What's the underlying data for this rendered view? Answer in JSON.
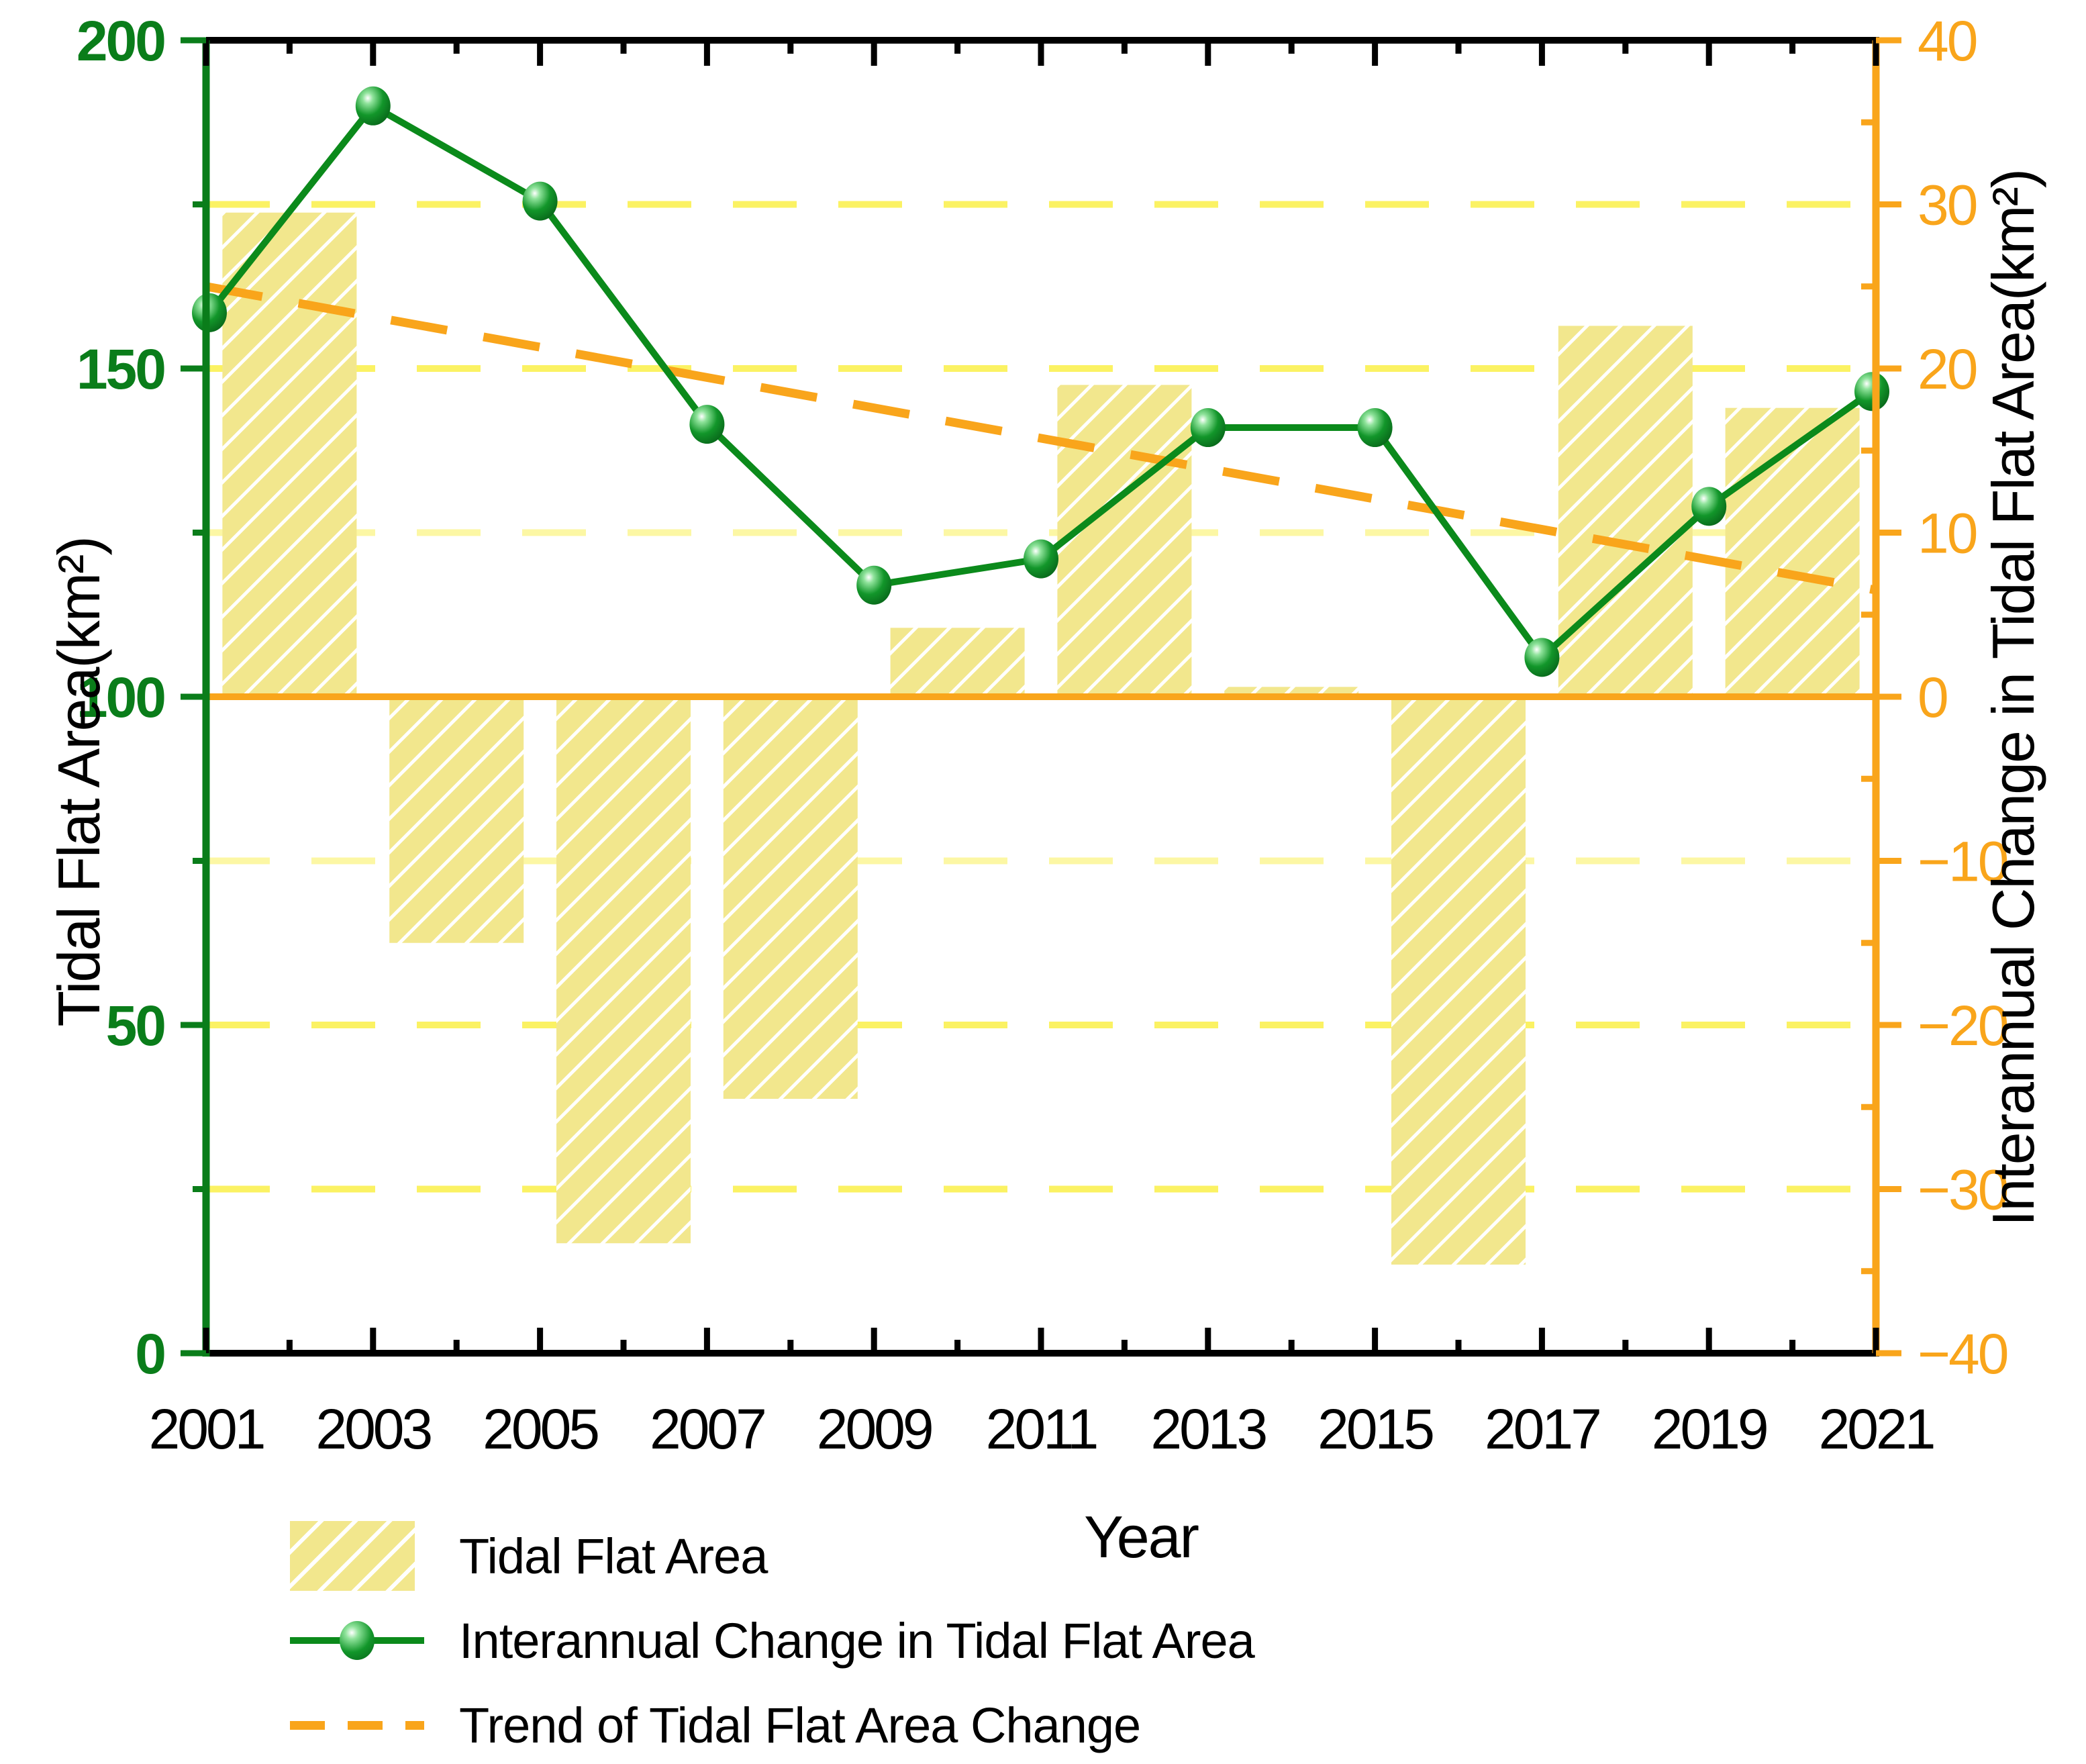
{
  "figure": {
    "x_axis_title": "Year",
    "left_axis_title": "Tidal Flat Area(km²)",
    "right_axis_title": "Interannual Change in Tidal Flat Area(km²)"
  },
  "legend": {
    "items": [
      {
        "label": "Tidal Flat Area",
        "marker": "yellow-hatched-bar-swatch"
      },
      {
        "label": "Interannual Change in Tidal Flat Area",
        "marker": "green-line-with-sphere-marker"
      },
      {
        "label": "Trend of Tidal Flat Area Change",
        "marker": "orange-dashed-line"
      }
    ]
  },
  "colors": {
    "bar_fill": "#F2E78D",
    "bar_hatch": "#FFFFFF",
    "line_green": "#0B8A1B",
    "orange": "#F9A51B",
    "gridline_yellow": "#FBF25B",
    "left_tick_label_green": "#0A7D1A",
    "axis_black": "#000000"
  },
  "chart_data": {
    "type": "bar+line",
    "title": "",
    "xlabel": "Year",
    "ylabel_left": "Tidal Flat Area(km²)",
    "ylabel_right": "Interannual Change in Tidal Flat Area(km²)",
    "xlim": [
      2001,
      2021
    ],
    "ylim_left": [
      0,
      200
    ],
    "ylim_right": [
      -40,
      40
    ],
    "x_major_ticks": [
      2001,
      2003,
      2005,
      2007,
      2009,
      2011,
      2013,
      2015,
      2017,
      2019,
      2021
    ],
    "x_minor_ticks": [
      2002,
      2004,
      2006,
      2008,
      2010,
      2012,
      2014,
      2016,
      2018,
      2020
    ],
    "left_major_ticks": [
      0,
      50,
      100,
      150,
      200
    ],
    "right_major_ticks": [
      -40,
      -30,
      -20,
      -10,
      0,
      10,
      20,
      30,
      40
    ],
    "gridlines_right_values": [
      30,
      20,
      10,
      -10,
      -20,
      -30
    ],
    "zero_baseline_right_axis": 0,
    "series": [
      {
        "name": "Tidal Flat Area",
        "type": "bar",
        "axis": "right",
        "baseline": 0,
        "x": [
          2002,
          2004,
          2006,
          2008,
          2010,
          2012,
          2014,
          2016,
          2018,
          2020
        ],
        "values": [
          29.5,
          -15.0,
          -33.3,
          -24.5,
          4.2,
          19.0,
          0.6,
          -34.6,
          22.6,
          17.6
        ]
      },
      {
        "name": "Interannual Change in Tidal Flat Area",
        "type": "line",
        "axis": "left",
        "x": [
          2001,
          2003,
          2005,
          2007,
          2009,
          2011,
          2013,
          2015,
          2017,
          2019,
          2021
        ],
        "values": [
          158.5,
          190,
          175.5,
          141.5,
          117,
          121,
          141,
          141,
          106,
          129,
          146.5
        ]
      },
      {
        "name": "Trend of Tidal Flat Area Change",
        "type": "trend-line",
        "axis": "right",
        "x": [
          2001,
          2021
        ],
        "values": [
          25,
          6.5
        ]
      }
    ]
  }
}
